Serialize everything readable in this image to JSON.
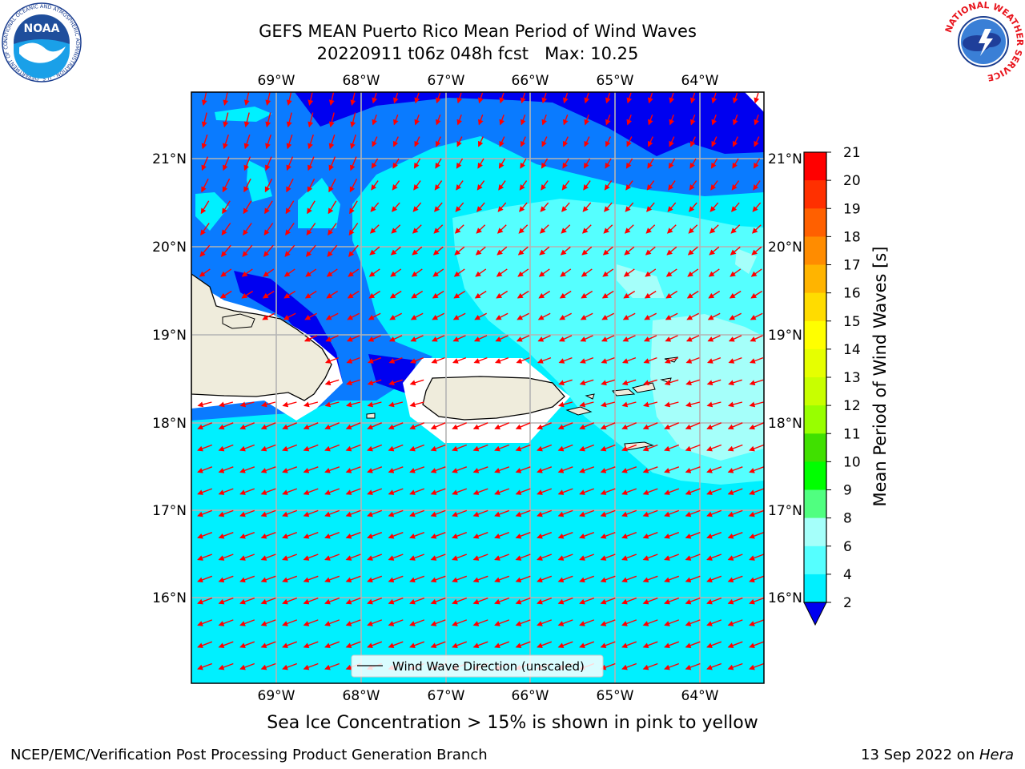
{
  "title": {
    "line1": "GEFS MEAN Puerto Rico Mean Period of Wind Waves",
    "line2": "20220911 t06z 048h fcst   Max: 10.25"
  },
  "map": {
    "lon_labels": [
      "69°W",
      "68°W",
      "67°W",
      "66°W",
      "65°W",
      "64°W"
    ],
    "lat_labels": [
      "21°N",
      "20°N",
      "19°N",
      "18°N",
      "17°N",
      "16°N"
    ],
    "legend_label": "Wind Wave Direction (unscaled)",
    "colors": {
      "land": "#efecdc",
      "level_2_4": "#0a7bff",
      "level_4_6": "#00f0ff",
      "level_6_8": "#55ffff",
      "level_8_9": "#a5fffa",
      "below_2": "#0000f0",
      "arrow": "#ff0000"
    }
  },
  "colorbar": {
    "label": "Mean Period of Wind Waves [s]",
    "ticks": [
      "21",
      "20",
      "19",
      "18",
      "17",
      "16",
      "15",
      "14",
      "13",
      "12",
      "11",
      "10",
      "9",
      "8",
      "6",
      "4",
      "2"
    ],
    "colors": [
      "#ff0000",
      "#ff3000",
      "#ff6000",
      "#ff8c00",
      "#ffb400",
      "#ffdc00",
      "#ffff00",
      "#e6ff00",
      "#c8ff00",
      "#98ff00",
      "#40e000",
      "#00ff00",
      "#50ff80",
      "#a5fffa",
      "#55ffff",
      "#00f0ff",
      "#0a7bff"
    ],
    "extend_color": "#0000f0"
  },
  "sea_ice_note": "Sea Ice Concentration > 15% is shown in pink to yellow",
  "footer": {
    "left": "NCEP/EMC/Verification Post Processing Product Generation Branch",
    "right_prefix": "13 Sep 2022 on ",
    "right_host": "Hera"
  },
  "logos": {
    "noaa": "NOAA",
    "noaa_ring": "NATIONAL OCEANIC AND ATMOSPHERIC ADMINISTRATION · U.S. DEPARTMENT OF COMMERCE",
    "nws_ring": "NATIONAL WEATHER SERVICE"
  }
}
